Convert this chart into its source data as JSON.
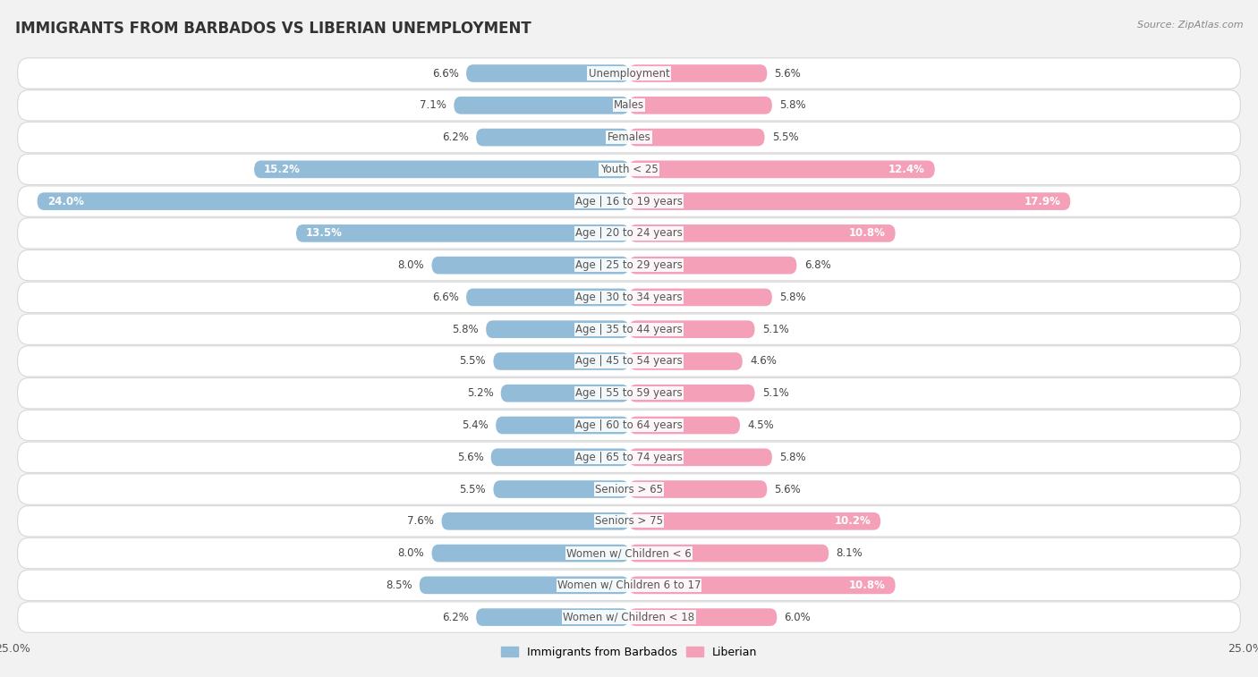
{
  "title": "IMMIGRANTS FROM BARBADOS VS LIBERIAN UNEMPLOYMENT",
  "source": "Source: ZipAtlas.com",
  "categories": [
    "Unemployment",
    "Males",
    "Females",
    "Youth < 25",
    "Age | 16 to 19 years",
    "Age | 20 to 24 years",
    "Age | 25 to 29 years",
    "Age | 30 to 34 years",
    "Age | 35 to 44 years",
    "Age | 45 to 54 years",
    "Age | 55 to 59 years",
    "Age | 60 to 64 years",
    "Age | 65 to 74 years",
    "Seniors > 65",
    "Seniors > 75",
    "Women w/ Children < 6",
    "Women w/ Children 6 to 17",
    "Women w/ Children < 18"
  ],
  "barbados_values": [
    6.6,
    7.1,
    6.2,
    15.2,
    24.0,
    13.5,
    8.0,
    6.6,
    5.8,
    5.5,
    5.2,
    5.4,
    5.6,
    5.5,
    7.6,
    8.0,
    8.5,
    6.2
  ],
  "liberian_values": [
    5.6,
    5.8,
    5.5,
    12.4,
    17.9,
    10.8,
    6.8,
    5.8,
    5.1,
    4.6,
    5.1,
    4.5,
    5.8,
    5.6,
    10.2,
    8.1,
    10.8,
    6.0
  ],
  "barbados_color": "#92bcd8",
  "liberian_color": "#f4a0b8",
  "axis_limit": 25.0,
  "bar_height": 0.55,
  "bg_color": "#f2f2f2",
  "row_bg_color": "#ffffff",
  "row_border_color": "#d8d8d8",
  "label_fontsize": 8.5,
  "title_fontsize": 12,
  "value_fontsize": 8.5,
  "label_color": "#555555",
  "value_color_dark": "#444444",
  "value_color_light": "#ffffff"
}
